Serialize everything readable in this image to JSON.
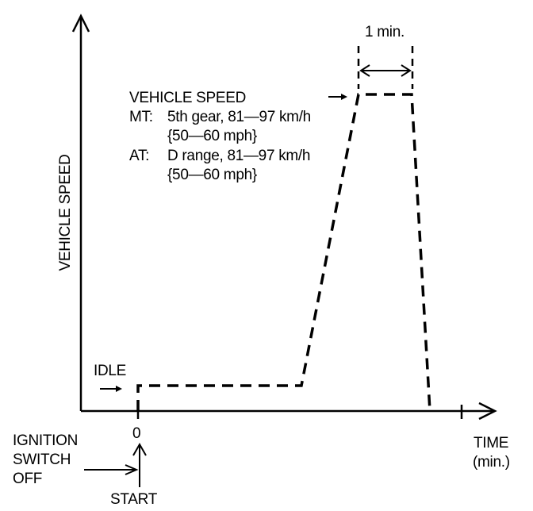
{
  "diagram": {
    "y_axis_label": "VEHICLE SPEED",
    "x_axis_label_line1": "TIME",
    "x_axis_label_line2": "(min.)",
    "origin_label": "0",
    "duration_label": "1 min.",
    "idle_label": "IDLE",
    "speed_note": {
      "title": "VEHICLE SPEED",
      "mt_prefix": "MT:",
      "mt_line1": "5th gear, 81—97 km/h",
      "mt_line2": "{50—60 mph}",
      "at_prefix": "AT:",
      "at_line1": "D range, 81—97 km/h",
      "at_line2": "{50—60 mph}"
    },
    "ignition_line1": "IGNITION",
    "ignition_line2": "SWITCH",
    "ignition_line3": "OFF",
    "start_label": "START"
  }
}
